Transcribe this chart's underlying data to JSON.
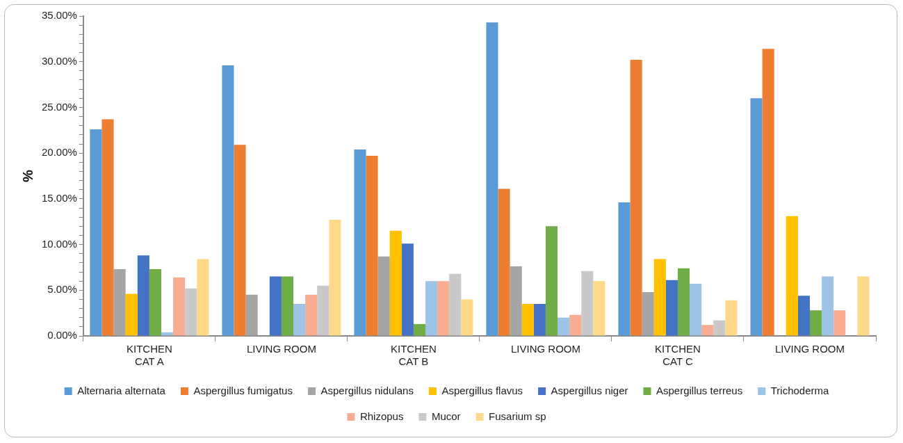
{
  "chart_data": {
    "type": "bar",
    "ylabel": "%",
    "categories": [
      "KITCHEN\nCAT A",
      "LIVING ROOM",
      "KITCHEN\nCAT B",
      "LIVING ROOM",
      "KITCHEN\nCAT C",
      "LIVING ROOM"
    ],
    "series": [
      {
        "name": "Alternaria alternata",
        "color": "#5b9bd5",
        "values": [
          22.6,
          29.6,
          20.4,
          34.3,
          14.6,
          26.0
        ]
      },
      {
        "name": "Aspergillus fumigatus",
        "color": "#ed7d31",
        "values": [
          23.7,
          20.9,
          19.7,
          16.1,
          30.2,
          31.4
        ]
      },
      {
        "name": "Aspergillus nidulans",
        "color": "#a5a5a5",
        "values": [
          7.3,
          4.5,
          8.7,
          7.6,
          4.8,
          0
        ]
      },
      {
        "name": "Aspergillus flavus",
        "color": "#ffc000",
        "values": [
          4.6,
          0,
          11.5,
          3.5,
          8.4,
          13.1
        ]
      },
      {
        "name": "Aspergillus niger",
        "color": "#4472c4",
        "values": [
          8.8,
          6.5,
          10.1,
          3.5,
          6.1,
          4.4
        ]
      },
      {
        "name": "Aspergillus terreus",
        "color": "#70ad47",
        "values": [
          7.3,
          6.5,
          1.3,
          12.0,
          7.4,
          2.8
        ]
      },
      {
        "name": "Trichoderma",
        "color": "#9dc3e6",
        "values": [
          0.4,
          3.5,
          6.0,
          2.0,
          5.7,
          6.5
        ]
      },
      {
        "name": "Rhizopus",
        "color": "#f8ac91",
        "values": [
          6.4,
          4.5,
          6.0,
          2.3,
          1.2,
          2.8
        ]
      },
      {
        "name": "Mucor",
        "color": "#c9c9c9",
        "values": [
          5.2,
          5.5,
          6.8,
          7.1,
          1.7,
          0
        ]
      },
      {
        "name": "Fusarium sp",
        "color": "#ffd98a",
        "values": [
          8.4,
          12.7,
          4.0,
          6.0,
          3.9,
          6.5
        ]
      }
    ],
    "ylim": [
      0,
      35
    ],
    "yticks": [
      {
        "value": 0,
        "label": "0.00%"
      },
      {
        "value": 1,
        "label": null
      },
      {
        "value": 2,
        "label": null
      },
      {
        "value": 3,
        "label": null
      },
      {
        "value": 4,
        "label": null
      },
      {
        "value": 5,
        "label": "5.00%"
      },
      {
        "value": 6,
        "label": null
      },
      {
        "value": 7,
        "label": null
      },
      {
        "value": 8,
        "label": null
      },
      {
        "value": 9,
        "label": null
      },
      {
        "value": 10,
        "label": "10.00%"
      },
      {
        "value": 11,
        "label": null
      },
      {
        "value": 12,
        "label": null
      },
      {
        "value": 13,
        "label": null
      },
      {
        "value": 14,
        "label": null
      },
      {
        "value": 15,
        "label": "15.00%"
      },
      {
        "value": 16,
        "label": null
      },
      {
        "value": 17,
        "label": null
      },
      {
        "value": 18,
        "label": null
      },
      {
        "value": 19,
        "label": null
      },
      {
        "value": 20,
        "label": "20.00%"
      },
      {
        "value": 21,
        "label": null
      },
      {
        "value": 22,
        "label": null
      },
      {
        "value": 23,
        "label": null
      },
      {
        "value": 24,
        "label": null
      },
      {
        "value": 25,
        "label": "25.00%"
      },
      {
        "value": 26,
        "label": null
      },
      {
        "value": 27,
        "label": null
      },
      {
        "value": 28,
        "label": null
      },
      {
        "value": 29,
        "label": null
      },
      {
        "value": 30,
        "label": "30.00%"
      },
      {
        "value": 31,
        "label": null
      },
      {
        "value": 32,
        "label": null
      },
      {
        "value": 33,
        "label": null
      },
      {
        "value": 34,
        "label": null
      },
      {
        "value": 35,
        "label": "35.00%"
      }
    ],
    "grid": false,
    "legend": "bottom"
  }
}
